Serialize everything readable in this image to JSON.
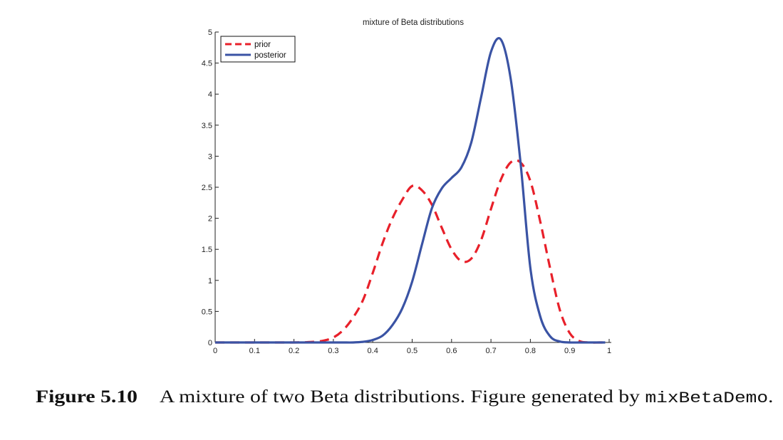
{
  "chart_data": {
    "type": "line",
    "title": "mixture of Beta distributions",
    "xlabel": "",
    "ylabel": "",
    "xlim": [
      0,
      1
    ],
    "ylim": [
      0,
      5
    ],
    "xticks": [
      "0",
      "0.1",
      "0.2",
      "0.3",
      "0.4",
      "0.5",
      "0.6",
      "0.7",
      "0.8",
      "0.9",
      "1"
    ],
    "yticks": [
      "0",
      "0.5",
      "1",
      "1.5",
      "2",
      "2.5",
      "3",
      "3.5",
      "4",
      "4.5",
      "5"
    ],
    "grid": false,
    "legend_position": "top-left",
    "x": [
      0,
      0.025,
      0.05,
      0.075,
      0.1,
      0.125,
      0.15,
      0.175,
      0.2,
      0.225,
      0.25,
      0.275,
      0.3,
      0.325,
      0.35,
      0.375,
      0.4,
      0.425,
      0.45,
      0.475,
      0.5,
      0.525,
      0.55,
      0.575,
      0.6,
      0.625,
      0.65,
      0.675,
      0.7,
      0.725,
      0.75,
      0.775,
      0.8,
      0.825,
      0.85,
      0.875,
      0.9,
      0.925,
      0.95,
      0.975,
      0.99
    ],
    "series": [
      {
        "name": "prior",
        "color": "#e8202a",
        "style": "dashed",
        "values": [
          0,
          0,
          0,
          0,
          0,
          0,
          0,
          0,
          0,
          0.003,
          0.01,
          0.03,
          0.08,
          0.2,
          0.4,
          0.68,
          1.12,
          1.6,
          2.0,
          2.3,
          2.52,
          2.45,
          2.22,
          1.85,
          1.5,
          1.31,
          1.35,
          1.65,
          2.15,
          2.62,
          2.9,
          2.9,
          2.6,
          1.95,
          1.2,
          0.52,
          0.15,
          0.02,
          0,
          0,
          0
        ]
      },
      {
        "name": "posterior",
        "color": "#3a53a4",
        "style": "solid",
        "values": [
          0,
          0,
          0,
          0,
          0,
          0,
          0,
          0,
          0,
          0,
          0,
          0,
          0,
          0,
          0,
          0.01,
          0.04,
          0.11,
          0.28,
          0.55,
          0.98,
          1.58,
          2.16,
          2.48,
          2.65,
          2.82,
          3.22,
          3.95,
          4.68,
          4.88,
          4.25,
          2.9,
          1.2,
          0.42,
          0.1,
          0.015,
          0,
          0,
          0,
          0,
          0
        ]
      }
    ]
  },
  "caption": {
    "label": "Figure 5.10",
    "text": "A mixture of two Beta distributions. Figure generated by ",
    "code": "mixBetaDemo",
    "end": "."
  }
}
